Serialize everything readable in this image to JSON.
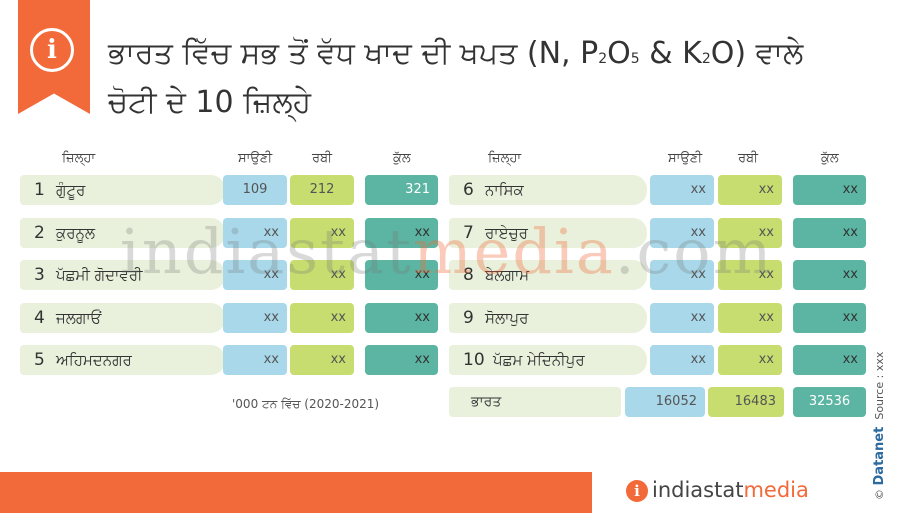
{
  "title": {
    "line1_main": "ਭਾਰਤ ਵਿੱਚ ਸਭ ਤੋਂ ਵੱਧ ਖਾਦ ਦੀ ਖਪਤ (N, P",
    "sub_p": "2",
    "mid_o": "O",
    "sub_o": "5",
    "mid_k": " & K",
    "sub_k": "2",
    "line1_end": "O) ਵਾਲੇ",
    "line2": "ਚੋਟੀ ਦੇ 10 ਜ਼ਿਲ੍ਹੇ"
  },
  "headers": {
    "district": "ਜ਼ਿਲ੍ਹਾ",
    "kharif": "ਸਾਉਣੀ",
    "rabi": "ਰਬੀ",
    "total": "ਕੁੱਲ"
  },
  "left_rows": [
    {
      "num": "1",
      "name": "ਗੁੰਟੂਰ",
      "kharif": "109",
      "rabi": "212",
      "total": "321"
    },
    {
      "num": "2",
      "name": "ਕੁਰਨੂਲ",
      "kharif": "xx",
      "rabi": "xx",
      "total": "xx"
    },
    {
      "num": "3",
      "name": "ਪੱਛਮੀ ਗੋਦਾਵਰੀ",
      "kharif": "xx",
      "rabi": "xx",
      "total": "xx"
    },
    {
      "num": "4",
      "name": "ਜਲਗਾਓਂ",
      "kharif": "xx",
      "rabi": "xx",
      "total": "xx"
    },
    {
      "num": "5",
      "name": "ਅਹਿਮਦਨਗਰ",
      "kharif": "xx",
      "rabi": "xx",
      "total": "xx"
    }
  ],
  "right_rows": [
    {
      "num": "6",
      "name": "ਨਾਸਿਕ",
      "kharif": "xx",
      "rabi": "xx",
      "total": "xx"
    },
    {
      "num": "7",
      "name": "ਰਾਏਚੁਰ",
      "kharif": "xx",
      "rabi": "xx",
      "total": "xx"
    },
    {
      "num": "8",
      "name": "ਬੇਲਗਾਮ",
      "kharif": "xx",
      "rabi": "xx",
      "total": "xx"
    },
    {
      "num": "9",
      "name": "ਸੋਲਾਪੁਰ",
      "kharif": "xx",
      "rabi": "xx",
      "total": "xx"
    },
    {
      "num": "10",
      "name": "ਪੱਛਮ ਮੇਦਿਨੀਪੁਰ",
      "kharif": "xx",
      "rabi": "xx",
      "total": "xx"
    }
  ],
  "india": {
    "name": "ਭਾਰਤ",
    "kharif": "16052",
    "rabi": "16483",
    "total": "32536"
  },
  "footnote": "'000 ਟਨ ਵਿੱਚ (2020-2021)",
  "watermark": {
    "part1": "indiastat",
    "part2": "media",
    "part3": ".com"
  },
  "side": {
    "brand": "Datanet",
    "source": "Source : xxx",
    "copyright": "©"
  },
  "footer_logo": {
    "icon": "i",
    "text1": "indiastat",
    "text2": "media"
  },
  "colors": {
    "orange": "#f26a3a",
    "kharif": "#a8d8ea",
    "rabi": "#c7dd6f",
    "total": "#5bb5a2",
    "name_bg": "#e9f1dc"
  }
}
